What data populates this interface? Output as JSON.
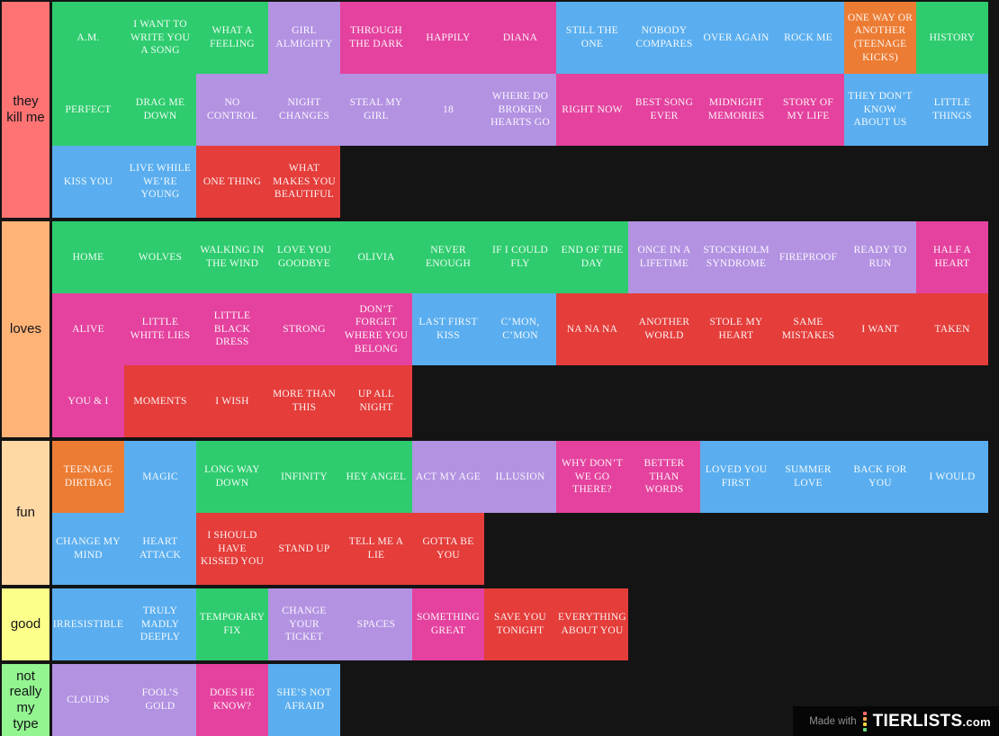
{
  "page": {
    "background": "#141414"
  },
  "tile_colors": {
    "green": "#2ecc6e",
    "lavender": "#b392e2",
    "pink": "#e4429e",
    "blue": "#5aaeef",
    "red": "#e43d3a",
    "orange": "#ec7c33"
  },
  "tiers": [
    {
      "label": "they kill me",
      "color": "#ff7373",
      "rows": [
        [
          {
            "t": "A.M.",
            "c": "green"
          },
          {
            "t": "I WANT TO WRITE YOU A SONG",
            "c": "green"
          },
          {
            "t": "WHAT A FEELING",
            "c": "green"
          },
          {
            "t": "GIRL ALMIGHTY",
            "c": "lavender"
          },
          {
            "t": "THROUGH THE DARK",
            "c": "pink"
          },
          {
            "t": "HAPPILY",
            "c": "pink"
          },
          {
            "t": "DIANA",
            "c": "pink"
          },
          {
            "t": "STILL THE ONE",
            "c": "blue"
          },
          {
            "t": "NOBODY COMPARES",
            "c": "blue"
          },
          {
            "t": "OVER AGAIN",
            "c": "blue"
          },
          {
            "t": "ROCK ME",
            "c": "blue"
          },
          {
            "t": "ONE WAY OR ANOTHER (TEENAGE KICKS)",
            "c": "orange"
          },
          {
            "t": "HISTORY",
            "c": "green"
          }
        ],
        [
          {
            "t": "PERFECT",
            "c": "green"
          },
          {
            "t": "DRAG ME DOWN",
            "c": "green"
          },
          {
            "t": "NO CONTROL",
            "c": "lavender"
          },
          {
            "t": "NIGHT CHANGES",
            "c": "lavender"
          },
          {
            "t": "STEAL MY GIRL",
            "c": "lavender"
          },
          {
            "t": "18",
            "c": "lavender"
          },
          {
            "t": "WHERE DO BROKEN HEARTS GO",
            "c": "lavender"
          },
          {
            "t": "RIGHT NOW",
            "c": "pink"
          },
          {
            "t": "BEST SONG EVER",
            "c": "pink"
          },
          {
            "t": "MIDNIGHT MEMORIES",
            "c": "pink"
          },
          {
            "t": "STORY OF MY LIFE",
            "c": "pink"
          },
          {
            "t": "THEY DON’T KNOW ABOUT US",
            "c": "blue"
          },
          {
            "t": "LITTLE THINGS",
            "c": "blue"
          }
        ],
        [
          {
            "t": "KISS YOU",
            "c": "blue"
          },
          {
            "t": "LIVE WHILE WE’RE YOUNG",
            "c": "blue"
          },
          {
            "t": "ONE THING",
            "c": "red"
          },
          {
            "t": "WHAT MAKES YOU BEAUTIFUL",
            "c": "red"
          }
        ]
      ]
    },
    {
      "label": "loves",
      "color": "#ffb377",
      "rows": [
        [
          {
            "t": "HOME",
            "c": "green"
          },
          {
            "t": "WOLVES",
            "c": "green"
          },
          {
            "t": "WALKING IN THE WIND",
            "c": "green"
          },
          {
            "t": "LOVE YOU GOODBYE",
            "c": "green"
          },
          {
            "t": "OLIVIA",
            "c": "green"
          },
          {
            "t": "NEVER ENOUGH",
            "c": "green"
          },
          {
            "t": "IF I COULD FLY",
            "c": "green"
          },
          {
            "t": "END OF THE DAY",
            "c": "green"
          },
          {
            "t": "ONCE IN A LIFETIME",
            "c": "lavender"
          },
          {
            "t": "STOCKHOLM SYNDROME",
            "c": "lavender"
          },
          {
            "t": "FIREPROOF",
            "c": "lavender"
          },
          {
            "t": "READY TO RUN",
            "c": "lavender"
          },
          {
            "t": "HALF A HEART",
            "c": "pink"
          }
        ],
        [
          {
            "t": "ALIVE",
            "c": "pink"
          },
          {
            "t": "LITTLE WHITE LIES",
            "c": "pink"
          },
          {
            "t": "LITTLE BLACK DRESS",
            "c": "pink"
          },
          {
            "t": "STRONG",
            "c": "pink"
          },
          {
            "t": "DON’T FORGET WHERE YOU BELONG",
            "c": "pink"
          },
          {
            "t": "LAST FIRST KISS",
            "c": "blue"
          },
          {
            "t": "C’MON, C’MON",
            "c": "blue"
          },
          {
            "t": "NA NA NA",
            "c": "red"
          },
          {
            "t": "ANOTHER WORLD",
            "c": "red"
          },
          {
            "t": "STOLE MY HEART",
            "c": "red"
          },
          {
            "t": "SAME MISTAKES",
            "c": "red"
          },
          {
            "t": "I WANT",
            "c": "red"
          },
          {
            "t": "TAKEN",
            "c": "red"
          }
        ],
        [
          {
            "t": "YOU & I",
            "c": "pink"
          },
          {
            "t": "MOMENTS",
            "c": "red"
          },
          {
            "t": "I WISH",
            "c": "red"
          },
          {
            "t": "MORE THAN THIS",
            "c": "red"
          },
          {
            "t": "UP ALL NIGHT",
            "c": "red"
          }
        ]
      ]
    },
    {
      "label": "fun",
      "color": "#ffd8a4",
      "rows": [
        [
          {
            "t": "TEENAGE DIRTBAG",
            "c": "orange"
          },
          {
            "t": "MAGIC",
            "c": "blue"
          },
          {
            "t": "LONG WAY DOWN",
            "c": "green"
          },
          {
            "t": "INFINITY",
            "c": "green"
          },
          {
            "t": "HEY ANGEL",
            "c": "green"
          },
          {
            "t": "ACT MY AGE",
            "c": "lavender"
          },
          {
            "t": "ILLUSION",
            "c": "lavender"
          },
          {
            "t": "WHY DON’T WE GO THERE?",
            "c": "pink"
          },
          {
            "t": "BETTER THAN WORDS",
            "c": "pink"
          },
          {
            "t": "LOVED YOU FIRST",
            "c": "blue"
          },
          {
            "t": "SUMMER LOVE",
            "c": "blue"
          },
          {
            "t": "BACK FOR YOU",
            "c": "blue"
          },
          {
            "t": "I WOULD",
            "c": "blue"
          }
        ],
        [
          {
            "t": "CHANGE MY MIND",
            "c": "blue"
          },
          {
            "t": "HEART ATTACK",
            "c": "blue"
          },
          {
            "t": "I SHOULD HAVE KISSED YOU",
            "c": "red"
          },
          {
            "t": "STAND UP",
            "c": "red"
          },
          {
            "t": "TELL ME A LIE",
            "c": "red"
          },
          {
            "t": "GOTTA BE YOU",
            "c": "red"
          }
        ]
      ]
    },
    {
      "label": "good",
      "color": "#fdff8b",
      "rows": [
        [
          {
            "t": "IRRESISTIBLE",
            "c": "blue"
          },
          {
            "t": "TRULY MADLY DEEPLY",
            "c": "blue"
          },
          {
            "t": "TEMPORARY FIX",
            "c": "green"
          },
          {
            "t": "CHANGE YOUR TICKET",
            "c": "lavender"
          },
          {
            "t": "SPACES",
            "c": "lavender"
          },
          {
            "t": "SOMETHING GREAT",
            "c": "pink"
          },
          {
            "t": "SAVE YOU TONIGHT",
            "c": "red"
          },
          {
            "t": "EVERYTHING ABOUT YOU",
            "c": "red"
          }
        ]
      ]
    },
    {
      "label": "not really my type",
      "color": "#92f58f",
      "rows": [
        [
          {
            "t": "CLOUDS",
            "c": "lavender"
          },
          {
            "t": "FOOL’S GOLD",
            "c": "lavender"
          },
          {
            "t": "DOES HE KNOW?",
            "c": "pink"
          },
          {
            "t": "SHE’S NOT AFRAID",
            "c": "blue"
          }
        ]
      ]
    }
  ],
  "watermark": {
    "made_with": "Made with",
    "brand": "TIERLISTS",
    "brand_suffix": ".com",
    "icon_colors": [
      "#ff6b6b",
      "#ffa94d",
      "#ffd43b",
      "#69db7c"
    ]
  }
}
